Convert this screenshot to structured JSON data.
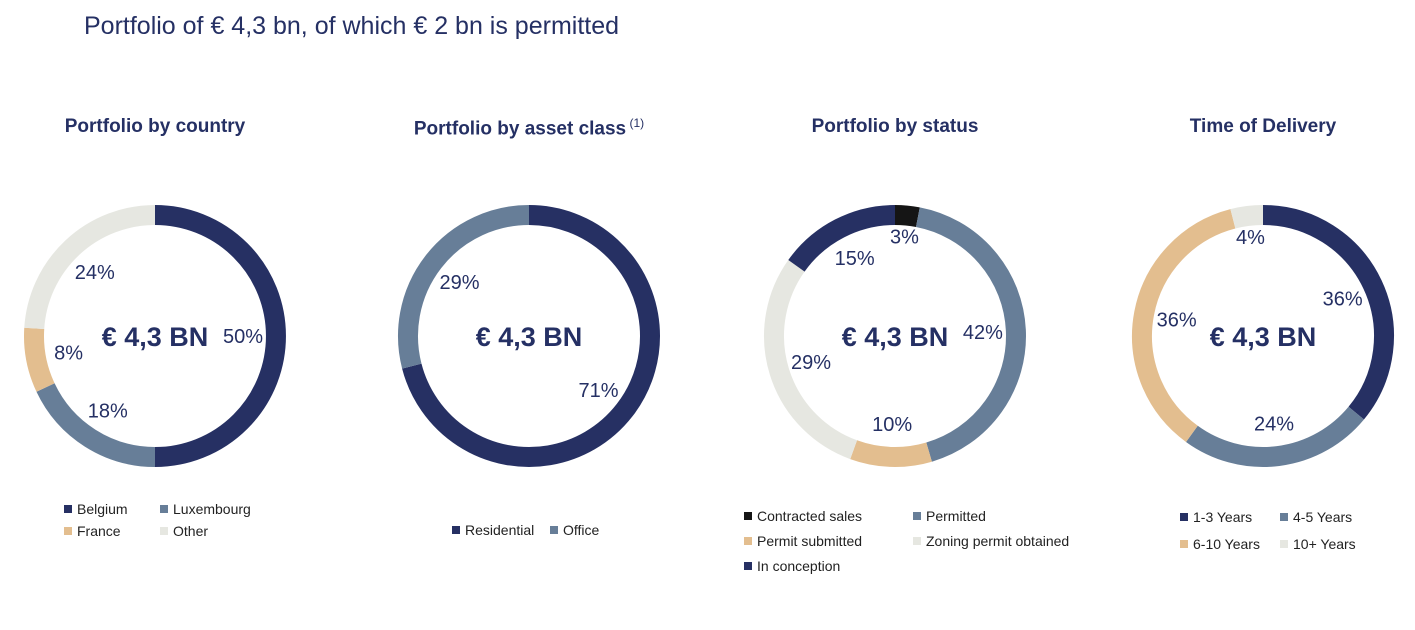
{
  "page_title": "Portfolio of € 4,3 bn, of which € 2 bn is permitted",
  "colors": {
    "navy": "#263063",
    "slate": "#677e98",
    "sand": "#e3be8f",
    "light": "#e6e7e1",
    "black": "#151515"
  },
  "chart_data": [
    {
      "type": "pie",
      "variant": "donut",
      "title": "Portfolio by country",
      "title_sup": "",
      "center_label": "€ 4,3 BN",
      "unit": "%",
      "legend_columns": 2,
      "series": [
        {
          "name": "Belgium",
          "value": 50,
          "label": "50%",
          "color": "#263063"
        },
        {
          "name": "Luxembourg",
          "value": 18,
          "label": "18%",
          "color": "#677e98"
        },
        {
          "name": "France",
          "value": 8,
          "label": "8%",
          "color": "#e3be8f"
        },
        {
          "name": "Other",
          "value": 24,
          "label": "24%",
          "color": "#e6e7e1"
        }
      ]
    },
    {
      "type": "pie",
      "variant": "donut",
      "title": "Portfolio by asset class",
      "title_sup": "(1)",
      "center_label": "€ 4,3 BN",
      "unit": "%",
      "legend_columns": 2,
      "series": [
        {
          "name": "Residential",
          "value": 71,
          "label": "71%",
          "color": "#263063"
        },
        {
          "name": "Office",
          "value": 29,
          "label": "29%",
          "color": "#677e98"
        }
      ]
    },
    {
      "type": "pie",
      "variant": "donut",
      "title": "Portfolio by status",
      "title_sup": "",
      "center_label": "€ 4,3 BN",
      "unit": "%",
      "legend_columns": 2,
      "series": [
        {
          "name": "Contracted sales",
          "value": 3,
          "label": "3%",
          "color": "#151515"
        },
        {
          "name": "Permitted",
          "value": 42,
          "label": "42%",
          "color": "#677e98"
        },
        {
          "name": "Permit submitted",
          "value": 10,
          "label": "10%",
          "color": "#e3be8f"
        },
        {
          "name": "Zoning permit obtained",
          "value": 29,
          "label": "29%",
          "color": "#e6e7e1"
        },
        {
          "name": "In conception",
          "value": 15,
          "label": "15%",
          "color": "#263063"
        }
      ]
    },
    {
      "type": "pie",
      "variant": "donut",
      "title": "Time of Delivery",
      "title_sup": "",
      "center_label": "€ 4,3 BN",
      "unit": "%",
      "legend_columns": 2,
      "series": [
        {
          "name": "1-3 Years",
          "value": 36,
          "label": "36%",
          "color": "#263063"
        },
        {
          "name": "4-5 Years",
          "value": 24,
          "label": "24%",
          "color": "#677e98"
        },
        {
          "name": "6-10 Years",
          "value": 36,
          "label": "36%",
          "color": "#e3be8f"
        },
        {
          "name": "10+ Years",
          "value": 4,
          "label": "4%",
          "color": "#e6e7e1"
        }
      ]
    }
  ]
}
